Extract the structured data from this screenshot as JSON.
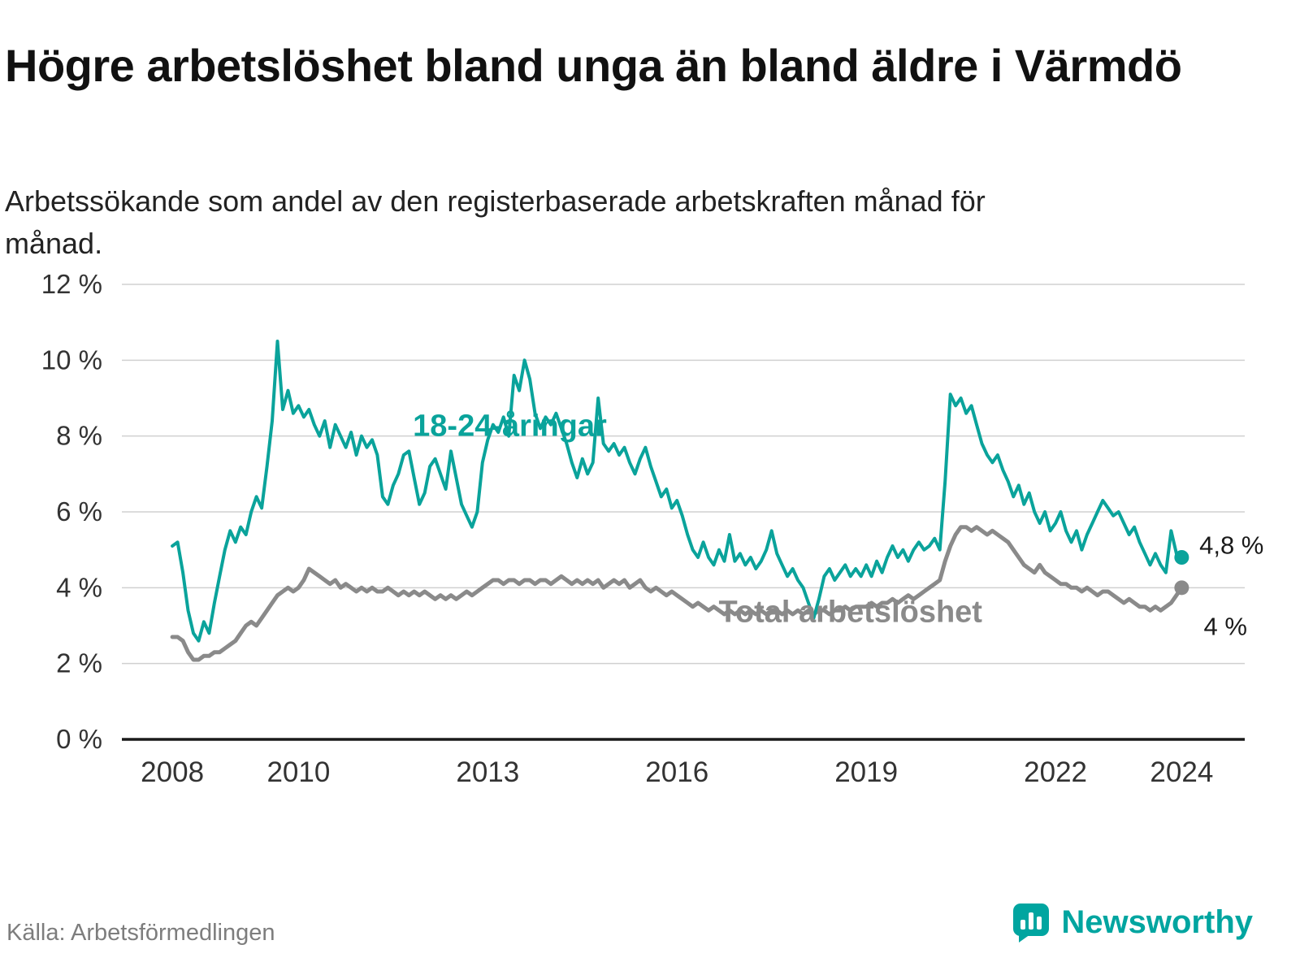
{
  "header": {
    "title": "Högre arbetslöshet bland unga än bland äldre i Värmdö",
    "subtitle": "Arbetssökande som andel av den registerbaserade arbetskraften månad för månad."
  },
  "footer": {
    "source": "Källa: Arbetsförmedlingen",
    "brand": "Newsworthy"
  },
  "colors": {
    "brand": "#00a5a0",
    "youth": "#0aa39b",
    "total": "#8a8a8a",
    "grid": "#d0d0d0",
    "axis": "#1a1a1a",
    "tick_text": "#333333",
    "background": "#ffffff"
  },
  "chart_data": {
    "type": "line",
    "title": "Högre arbetslöshet bland unga än bland äldre i Värmdö",
    "subtitle": "Arbetssökande som andel av den registerbaserade arbetskraften månad för månad.",
    "xlabel": "",
    "ylabel": "",
    "ylim": [
      0,
      12
    ],
    "xlim": [
      2007.2,
      2025.0
    ],
    "y_ticks": [
      0,
      2,
      4,
      6,
      8,
      10,
      12
    ],
    "y_tick_suffix": " %",
    "x_ticks": [
      2008,
      2010,
      2013,
      2016,
      2019,
      2022,
      2024
    ],
    "grid": "horizontal",
    "legend": "inline-labels",
    "x_start": 2008.0,
    "x_step": 0.0833333,
    "series": [
      {
        "name": "18-24-åringar",
        "color": "#0aa39b",
        "stroke_width": 4,
        "end_label": "4,8 %",
        "end_value": 4.8,
        "values": [
          5.1,
          5.2,
          4.4,
          3.4,
          2.8,
          2.6,
          3.1,
          2.8,
          3.6,
          4.3,
          5.0,
          5.5,
          5.2,
          5.6,
          5.4,
          6.0,
          6.4,
          6.1,
          7.2,
          8.4,
          10.5,
          8.7,
          9.2,
          8.6,
          8.8,
          8.5,
          8.7,
          8.3,
          8.0,
          8.4,
          7.7,
          8.3,
          8.0,
          7.7,
          8.1,
          7.5,
          8.0,
          7.7,
          7.9,
          7.5,
          6.4,
          6.2,
          6.7,
          7.0,
          7.5,
          7.6,
          6.9,
          6.2,
          6.5,
          7.2,
          7.4,
          7.0,
          6.6,
          7.6,
          6.9,
          6.2,
          5.9,
          5.6,
          6.0,
          7.3,
          7.9,
          8.3,
          8.1,
          8.5,
          8.0,
          9.6,
          9.2,
          10.0,
          9.5,
          8.6,
          8.2,
          8.5,
          8.3,
          8.6,
          8.2,
          7.8,
          7.3,
          6.9,
          7.4,
          7.0,
          7.3,
          9.0,
          7.8,
          7.6,
          7.8,
          7.5,
          7.7,
          7.3,
          7.0,
          7.4,
          7.7,
          7.2,
          6.8,
          6.4,
          6.6,
          6.1,
          6.3,
          5.9,
          5.4,
          5.0,
          4.8,
          5.2,
          4.8,
          4.6,
          5.0,
          4.7,
          5.4,
          4.7,
          4.9,
          4.6,
          4.8,
          4.5,
          4.7,
          5.0,
          5.5,
          4.9,
          4.6,
          4.3,
          4.5,
          4.2,
          4.0,
          3.6,
          3.2,
          3.7,
          4.3,
          4.5,
          4.2,
          4.4,
          4.6,
          4.3,
          4.5,
          4.3,
          4.6,
          4.3,
          4.7,
          4.4,
          4.8,
          5.1,
          4.8,
          5.0,
          4.7,
          5.0,
          5.2,
          5.0,
          5.1,
          5.3,
          5.0,
          6.8,
          9.1,
          8.8,
          9.0,
          8.6,
          8.8,
          8.3,
          7.8,
          7.5,
          7.3,
          7.5,
          7.1,
          6.8,
          6.4,
          6.7,
          6.2,
          6.5,
          6.0,
          5.7,
          6.0,
          5.5,
          5.7,
          6.0,
          5.5,
          5.2,
          5.5,
          5.0,
          5.4,
          5.7,
          6.0,
          6.3,
          6.1,
          5.9,
          6.0,
          5.7,
          5.4,
          5.6,
          5.2,
          4.9,
          4.6,
          4.9,
          4.6,
          4.4,
          5.5,
          4.9,
          4.8
        ]
      },
      {
        "name": "Total arbetslöshet",
        "color": "#8a8a8a",
        "stroke_width": 5,
        "end_label": "4 %",
        "end_value": 4.0,
        "values": [
          2.7,
          2.7,
          2.6,
          2.3,
          2.1,
          2.1,
          2.2,
          2.2,
          2.3,
          2.3,
          2.4,
          2.5,
          2.6,
          2.8,
          3.0,
          3.1,
          3.0,
          3.2,
          3.4,
          3.6,
          3.8,
          3.9,
          4.0,
          3.9,
          4.0,
          4.2,
          4.5,
          4.4,
          4.3,
          4.2,
          4.1,
          4.2,
          4.0,
          4.1,
          4.0,
          3.9,
          4.0,
          3.9,
          4.0,
          3.9,
          3.9,
          4.0,
          3.9,
          3.8,
          3.9,
          3.8,
          3.9,
          3.8,
          3.9,
          3.8,
          3.7,
          3.8,
          3.7,
          3.8,
          3.7,
          3.8,
          3.9,
          3.8,
          3.9,
          4.0,
          4.1,
          4.2,
          4.2,
          4.1,
          4.2,
          4.2,
          4.1,
          4.2,
          4.2,
          4.1,
          4.2,
          4.2,
          4.1,
          4.2,
          4.3,
          4.2,
          4.1,
          4.2,
          4.1,
          4.2,
          4.1,
          4.2,
          4.0,
          4.1,
          4.2,
          4.1,
          4.2,
          4.0,
          4.1,
          4.2,
          4.0,
          3.9,
          4.0,
          3.9,
          3.8,
          3.9,
          3.8,
          3.7,
          3.6,
          3.5,
          3.6,
          3.5,
          3.4,
          3.5,
          3.4,
          3.3,
          3.4,
          3.3,
          3.4,
          3.3,
          3.4,
          3.3,
          3.4,
          3.3,
          3.4,
          3.4,
          3.3,
          3.4,
          3.3,
          3.4,
          3.3,
          3.4,
          3.3,
          3.4,
          3.4,
          3.3,
          3.4,
          3.4,
          3.5,
          3.4,
          3.5,
          3.5,
          3.5,
          3.6,
          3.5,
          3.6,
          3.6,
          3.7,
          3.6,
          3.7,
          3.8,
          3.7,
          3.8,
          3.9,
          4.0,
          4.1,
          4.2,
          4.7,
          5.1,
          5.4,
          5.6,
          5.6,
          5.5,
          5.6,
          5.5,
          5.4,
          5.5,
          5.4,
          5.3,
          5.2,
          5.0,
          4.8,
          4.6,
          4.5,
          4.4,
          4.6,
          4.4,
          4.3,
          4.2,
          4.1,
          4.1,
          4.0,
          4.0,
          3.9,
          4.0,
          3.9,
          3.8,
          3.9,
          3.9,
          3.8,
          3.7,
          3.6,
          3.7,
          3.6,
          3.5,
          3.5,
          3.4,
          3.5,
          3.4,
          3.5,
          3.6,
          3.8,
          4.0
        ]
      }
    ],
    "annotations": [
      {
        "text": "18-24-åringar",
        "x": 2013.35,
        "y": 8.0,
        "color": "#0aa39b",
        "size": 38,
        "weight": "bold",
        "anchor": "middle"
      },
      {
        "text": "Total arbetslöshet",
        "x": 2018.75,
        "y": 3.1,
        "color": "#8a8a8a",
        "size": 38,
        "weight": "bold",
        "anchor": "middle"
      },
      {
        "text": "4,8 %",
        "x": 2024.28,
        "y": 4.9,
        "color": "#1a1a1a",
        "size": 31,
        "weight": "normal",
        "anchor": "start"
      },
      {
        "text": "4 %",
        "x": 2024.35,
        "y": 2.75,
        "color": "#1a1a1a",
        "size": 31,
        "weight": "normal",
        "anchor": "start"
      }
    ]
  }
}
